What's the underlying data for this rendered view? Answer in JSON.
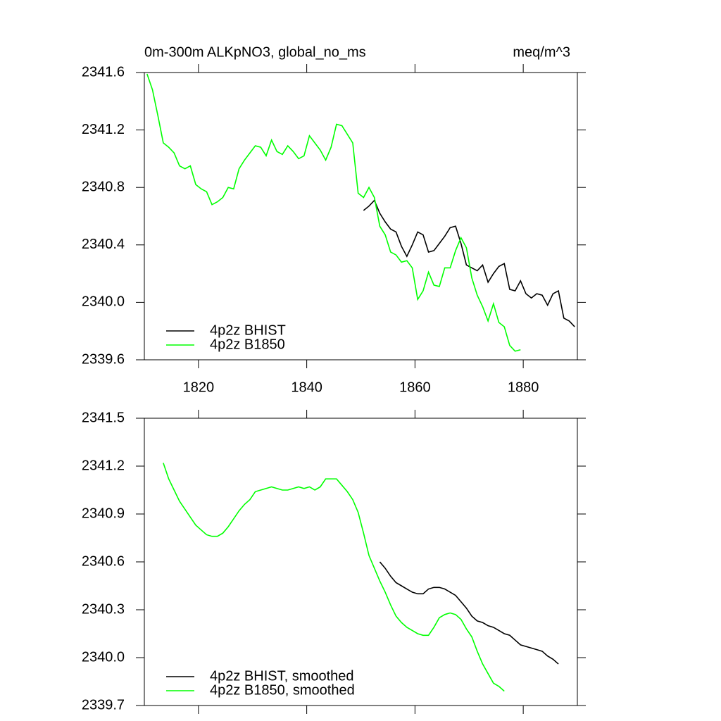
{
  "chart_data": [
    {
      "type": "line",
      "title": "0m-300m ALKpNO3, global_no_ms",
      "units_label": "meq/m^3",
      "xlim": [
        1810,
        1890
      ],
      "ylim": [
        2339.6,
        2341.6
      ],
      "xticks": [
        1820,
        1840,
        1860,
        1880
      ],
      "yticks": [
        2339.6,
        {
          "value": 2340,
          "label": "2340.0"
        },
        2340.4,
        2340.8,
        2341.2,
        2341.6
      ],
      "legend": "lower left",
      "series": [
        {
          "name": "4p2z BHIST",
          "color": "#000000",
          "x": [
            1850.5,
            1851.5,
            1852.5,
            1853.5,
            1854.5,
            1855.5,
            1856.5,
            1857.5,
            1858.5,
            1859.5,
            1860.5,
            1861.5,
            1862.5,
            1863.5,
            1864.5,
            1865.5,
            1866.5,
            1867.5,
            1868.5,
            1869.5,
            1870.5,
            1871.5,
            1872.5,
            1873.5,
            1874.5,
            1875.5,
            1876.5,
            1877.5,
            1878.5,
            1879.5,
            1880.5,
            1881.5,
            1882.5,
            1883.5,
            1884.5,
            1885.5,
            1886.5,
            1887.5,
            1888.5,
            1889.5
          ],
          "values": [
            2340.64,
            2340.67,
            2340.71,
            2340.62,
            2340.56,
            2340.51,
            2340.49,
            2340.39,
            2340.32,
            2340.4,
            2340.49,
            2340.47,
            2340.35,
            2340.36,
            2340.41,
            2340.46,
            2340.52,
            2340.53,
            2340.41,
            2340.26,
            2340.24,
            2340.22,
            2340.26,
            2340.14,
            2340.2,
            2340.25,
            2340.27,
            2340.09,
            2340.08,
            2340.15,
            2340.06,
            2340.03,
            2340.06,
            2340.05,
            2339.98,
            2340.06,
            2340.08,
            2339.89,
            2339.87,
            2339.83
          ]
        },
        {
          "name": "4p2z B1850",
          "color": "#00ff00",
          "x": [
            1810.5,
            1811.5,
            1812.5,
            1813.5,
            1814.5,
            1815.5,
            1816.5,
            1817.5,
            1818.5,
            1819.5,
            1820.5,
            1821.5,
            1822.5,
            1823.5,
            1824.5,
            1825.5,
            1826.5,
            1827.5,
            1828.5,
            1829.5,
            1830.5,
            1831.5,
            1832.5,
            1833.5,
            1834.5,
            1835.5,
            1836.5,
            1837.5,
            1838.5,
            1839.5,
            1840.5,
            1841.5,
            1842.5,
            1843.5,
            1844.5,
            1845.5,
            1846.5,
            1847.5,
            1848.5,
            1849.5,
            1850.5,
            1851.5,
            1852.5,
            1853.5,
            1854.5,
            1855.5,
            1856.5,
            1857.5,
            1858.5,
            1859.5,
            1860.5,
            1861.5,
            1862.5,
            1863.5,
            1864.5,
            1865.5,
            1866.5,
            1867.5,
            1868.5,
            1869.5,
            1870.5,
            1871.5,
            1872.5,
            1873.5,
            1874.5,
            1875.5,
            1876.5,
            1877.5,
            1878.5,
            1879.5
          ],
          "values": [
            2341.59,
            2341.48,
            2341.3,
            2341.11,
            2341.08,
            2341.04,
            2340.95,
            2340.93,
            2340.95,
            2340.82,
            2340.79,
            2340.77,
            2340.68,
            2340.7,
            2340.73,
            2340.8,
            2340.79,
            2340.93,
            2340.99,
            2341.04,
            2341.09,
            2341.08,
            2341.02,
            2341.13,
            2341.05,
            2341.03,
            2341.09,
            2341.05,
            2341.0,
            2341.02,
            2341.16,
            2341.11,
            2341.06,
            2340.99,
            2341.08,
            2341.24,
            2341.23,
            2341.17,
            2341.11,
            2340.76,
            2340.73,
            2340.8,
            2340.73,
            2340.53,
            2340.47,
            2340.35,
            2340.33,
            2340.28,
            2340.29,
            2340.24,
            2340.02,
            2340.08,
            2340.21,
            2340.12,
            2340.11,
            2340.24,
            2340.24,
            2340.36,
            2340.45,
            2340.38,
            2340.17,
            2340.05,
            2339.97,
            2339.87,
            2339.99,
            2339.86,
            2339.83,
            2339.7,
            2339.66,
            2339.67
          ]
        }
      ]
    },
    {
      "type": "line",
      "xlim": [
        1810,
        1890
      ],
      "ylim": [
        2339.7,
        2341.5
      ],
      "xticks": [
        1820,
        1840,
        1860,
        1880
      ],
      "xtick_labels": false,
      "yticks": [
        2339.7,
        {
          "value": 2340,
          "label": "2340.0"
        },
        2340.3,
        2340.6,
        2340.9,
        2341.2,
        2341.5
      ],
      "legend": "lower left",
      "series": [
        {
          "name": "4p2z BHIST, smoothed",
          "color": "#000000",
          "x": [
            1853.5,
            1854.5,
            1855.5,
            1856.5,
            1857.5,
            1858.5,
            1859.5,
            1860.5,
            1861.5,
            1862.5,
            1863.5,
            1864.5,
            1865.5,
            1866.5,
            1867.5,
            1868.5,
            1869.5,
            1870.5,
            1871.5,
            1872.5,
            1873.5,
            1874.5,
            1875.5,
            1876.5,
            1877.5,
            1878.5,
            1879.5,
            1880.5,
            1881.5,
            1882.5,
            1883.5,
            1884.5,
            1885.5,
            1886.5
          ],
          "values": [
            2340.6,
            2340.56,
            2340.51,
            2340.47,
            2340.45,
            2340.43,
            2340.41,
            2340.4,
            2340.4,
            2340.43,
            2340.44,
            2340.44,
            2340.43,
            2340.41,
            2340.39,
            2340.35,
            2340.31,
            2340.26,
            2340.23,
            2340.22,
            2340.2,
            2340.19,
            2340.17,
            2340.15,
            2340.14,
            2340.11,
            2340.08,
            2340.07,
            2340.06,
            2340.05,
            2340.04,
            2340.01,
            2339.99,
            2339.96
          ]
        },
        {
          "name": "4p2z B1850, smoothed",
          "color": "#00ff00",
          "x": [
            1813.5,
            1814.5,
            1815.5,
            1816.5,
            1817.5,
            1818.5,
            1819.5,
            1820.5,
            1821.5,
            1822.5,
            1823.5,
            1824.5,
            1825.5,
            1826.5,
            1827.5,
            1828.5,
            1829.5,
            1830.5,
            1831.5,
            1832.5,
            1833.5,
            1834.5,
            1835.5,
            1836.5,
            1837.5,
            1838.5,
            1839.5,
            1840.5,
            1841.5,
            1842.5,
            1843.5,
            1844.5,
            1845.5,
            1846.5,
            1847.5,
            1848.5,
            1849.5,
            1850.5,
            1851.5,
            1852.5,
            1853.5,
            1854.5,
            1855.5,
            1856.5,
            1857.5,
            1858.5,
            1859.5,
            1860.5,
            1861.5,
            1862.5,
            1863.5,
            1864.5,
            1865.5,
            1866.5,
            1867.5,
            1868.5,
            1869.5,
            1870.5,
            1871.5,
            1872.5,
            1873.5,
            1874.5,
            1875.5,
            1876.5
          ],
          "values": [
            2341.22,
            2341.12,
            2341.05,
            2340.98,
            2340.93,
            2340.88,
            2340.83,
            2340.8,
            2340.77,
            2340.76,
            2340.76,
            2340.78,
            2340.82,
            2340.87,
            2340.92,
            2340.96,
            2340.99,
            2341.04,
            2341.05,
            2341.06,
            2341.07,
            2341.06,
            2341.05,
            2341.05,
            2341.06,
            2341.07,
            2341.06,
            2341.07,
            2341.05,
            2341.07,
            2341.12,
            2341.12,
            2341.12,
            2341.08,
            2341.04,
            2340.99,
            2340.91,
            2340.78,
            2340.64,
            2340.56,
            2340.48,
            2340.41,
            2340.33,
            2340.26,
            2340.22,
            2340.19,
            2340.17,
            2340.15,
            2340.14,
            2340.14,
            2340.19,
            2340.25,
            2340.27,
            2340.28,
            2340.27,
            2340.24,
            2340.18,
            2340.13,
            2340.04,
            2339.96,
            2339.9,
            2339.84,
            2339.82,
            2339.79
          ]
        }
      ]
    }
  ]
}
